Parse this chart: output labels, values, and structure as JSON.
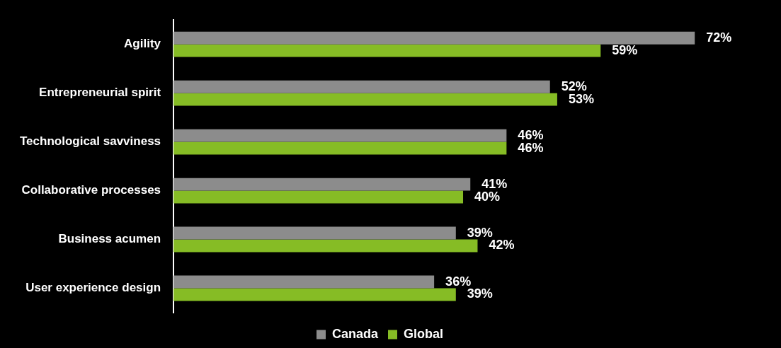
{
  "chart_data": {
    "type": "bar",
    "orientation": "horizontal",
    "categories": [
      "Agility",
      "Entrepreneurial spirit",
      "Technological savviness",
      "Collaborative processes",
      "Business acumen",
      "User experience design"
    ],
    "series": [
      {
        "name": "Canada",
        "color": "#8c8c8c",
        "values": [
          72,
          52,
          46,
          41,
          39,
          36
        ],
        "value_labels": [
          "72%",
          "52%",
          "46%",
          "41%",
          "39%",
          "36%"
        ]
      },
      {
        "name": "Global",
        "color": "#86bc25",
        "values": [
          59,
          53,
          46,
          40,
          42,
          39
        ],
        "value_labels": [
          "59%",
          "53%",
          "46%",
          "40%",
          "42%",
          "39%"
        ]
      }
    ],
    "tick_labels": "y",
    "grid": false,
    "legend": "bottom"
  }
}
